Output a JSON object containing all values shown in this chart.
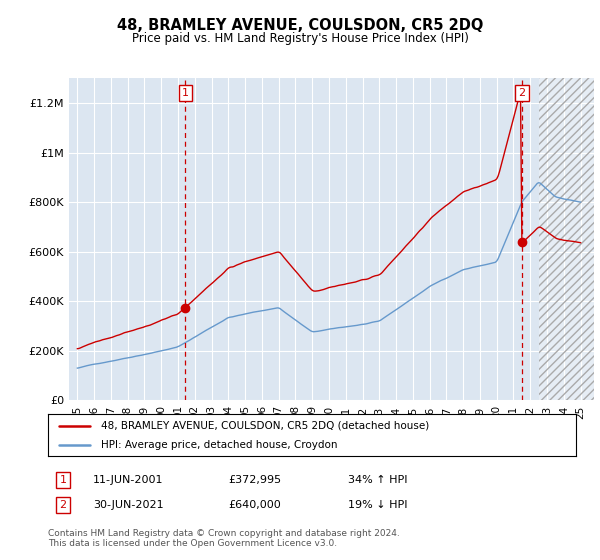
{
  "title": "48, BRAMLEY AVENUE, COULSDON, CR5 2DQ",
  "subtitle": "Price paid vs. HM Land Registry's House Price Index (HPI)",
  "ylabel_ticks": [
    "£0",
    "£200K",
    "£400K",
    "£600K",
    "£800K",
    "£1M",
    "£1.2M"
  ],
  "ytick_values": [
    0,
    200000,
    400000,
    600000,
    800000,
    1000000,
    1200000
  ],
  "ylim": [
    0,
    1300000
  ],
  "xlim_start": 1994.5,
  "xlim_end": 2025.8,
  "background_color": "#dce6f1",
  "red_color": "#cc0000",
  "blue_color": "#6699cc",
  "grid_color": "#ffffff",
  "hatch_color": "#cccccc",
  "marker1_x": 2001.44,
  "marker1_y": 372995,
  "marker2_x": 2021.5,
  "marker2_y": 640000,
  "legend_line1": "48, BRAMLEY AVENUE, COULSDON, CR5 2DQ (detached house)",
  "legend_line2": "HPI: Average price, detached house, Croydon",
  "annotation1_date": "11-JUN-2001",
  "annotation1_price": "£372,995",
  "annotation1_hpi": "34% ↑ HPI",
  "annotation2_date": "30-JUN-2021",
  "annotation2_price": "£640,000",
  "annotation2_hpi": "19% ↓ HPI",
  "footer": "Contains HM Land Registry data © Crown copyright and database right 2024.\nThis data is licensed under the Open Government Licence v3.0.",
  "hatch_start": 2022.5,
  "xtick_years": [
    1995,
    1996,
    1997,
    1998,
    1999,
    2000,
    2001,
    2002,
    2003,
    2004,
    2005,
    2006,
    2007,
    2008,
    2009,
    2010,
    2011,
    2012,
    2013,
    2014,
    2015,
    2016,
    2017,
    2018,
    2019,
    2020,
    2021,
    2022,
    2023,
    2024,
    2025
  ]
}
